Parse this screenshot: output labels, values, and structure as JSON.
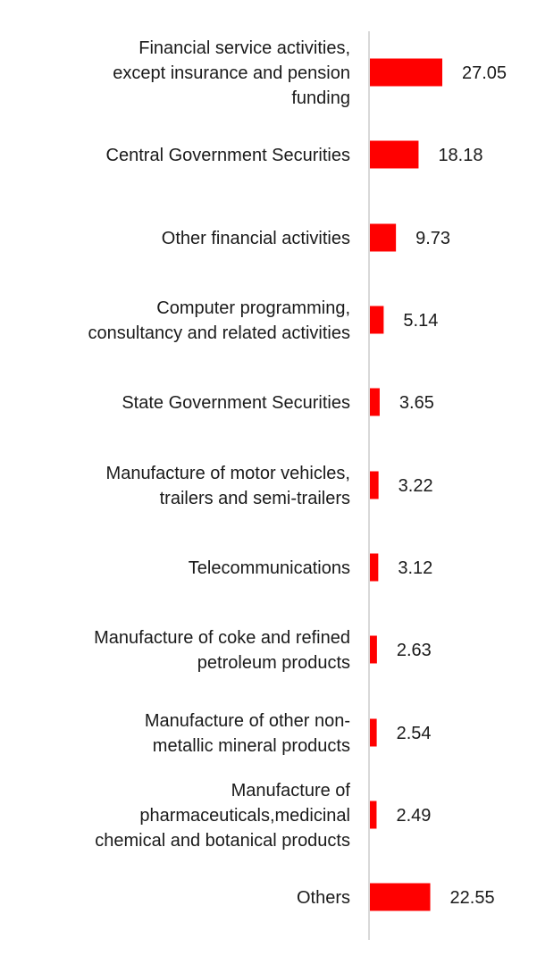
{
  "chart_data": {
    "type": "bar",
    "orientation": "horizontal",
    "bar_color": "#ff0000",
    "axis_color": "#d9d9d9",
    "grid": false,
    "xlim": [
      0,
      27.05
    ],
    "categories": [
      "Financial service activities, except insurance and pension funding",
      "Central Government Securities",
      "Other financial activities",
      "Computer programming, consultancy and related activities",
      "State Government Securities",
      "Manufacture of motor vehicles, trailers and semi-trailers",
      "Telecommunications",
      "Manufacture of coke and refined petroleum products",
      "Manufacture of other non-metallic mineral products",
      "Manufacture of pharmaceuticals,medicinal chemical and botanical products",
      "Others"
    ],
    "category_lines": [
      [
        "Financial service activities,",
        "except insurance and pension",
        "funding"
      ],
      [
        "Central Government Securities"
      ],
      [
        "Other financial activities"
      ],
      [
        "Computer programming,",
        "consultancy and related activities"
      ],
      [
        "State Government Securities"
      ],
      [
        "Manufacture of motor vehicles,",
        "trailers and semi-trailers"
      ],
      [
        "Telecommunications"
      ],
      [
        "Manufacture of coke and refined",
        "petroleum products"
      ],
      [
        "Manufacture of other non-",
        "metallic mineral products"
      ],
      [
        "Manufacture of",
        "pharmaceuticals,medicinal",
        "chemical and botanical products"
      ],
      [
        "Others"
      ]
    ],
    "values": [
      27.05,
      18.18,
      9.73,
      5.14,
      3.65,
      3.22,
      3.12,
      2.63,
      2.54,
      2.49,
      22.55
    ],
    "value_labels": [
      "27.05",
      "18.18",
      "9.73",
      "5.14",
      "3.65",
      "3.22",
      "3.12",
      "2.63",
      "2.54",
      "2.49",
      "22.55"
    ]
  }
}
